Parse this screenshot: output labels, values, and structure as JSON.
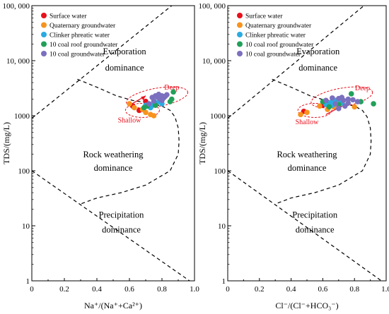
{
  "chart_data": [
    {
      "type": "scatter",
      "panel": "left",
      "title": "",
      "xlabel": "Na⁺/(Na⁺+Ca²⁺)",
      "ylabel": "TDS/(mg/L)",
      "xlim": [
        0,
        1
      ],
      "ylim": [
        1,
        100000
      ],
      "y_scale": "log",
      "x_ticks": [
        "0",
        "0.2",
        "0.4",
        "0.6",
        "0.8",
        "1.0"
      ],
      "y_ticks": [
        "1",
        "10",
        "100",
        "1000",
        "10, 000",
        "100, 000"
      ],
      "regions": [
        "Evaporation dominance",
        "Rock weathering dominance",
        "Precipitation dominance"
      ],
      "annotations": [
        "Deep",
        "Shallow"
      ],
      "legend_position": "top-left",
      "series": [
        {
          "name": "Surface water",
          "color": "#e8101c",
          "points": [
            [
              0.66,
              1250
            ],
            [
              0.62,
              1500
            ],
            [
              0.7,
              1820
            ]
          ]
        },
        {
          "name": "Quaternary groundwater",
          "color": "#f7931e",
          "points": [
            [
              0.6,
              1650
            ],
            [
              0.63,
              1400
            ],
            [
              0.7,
              1150
            ],
            [
              0.73,
              1050
            ],
            [
              0.75,
              1000
            ],
            [
              0.68,
              1300
            ]
          ]
        },
        {
          "name": "Clinker phreatic water",
          "color": "#29abe2",
          "points": [
            [
              0.7,
              1550
            ],
            [
              0.73,
              1400
            ],
            [
              0.74,
              1600
            ],
            [
              0.76,
              1700
            ],
            [
              0.78,
              1800
            ],
            [
              0.8,
              1650
            ]
          ]
        },
        {
          "name": "10 coal roof groundwater",
          "color": "#22a05a",
          "points": [
            [
              0.69,
              1400
            ],
            [
              0.71,
              1500
            ],
            [
              0.76,
              1550
            ],
            [
              0.85,
              1800
            ],
            [
              0.86,
              2000
            ],
            [
              0.87,
              2700
            ]
          ]
        },
        {
          "name": "10 coal  groundwater",
          "color": "#7b6fbf",
          "points": [
            [
              0.72,
              1650
            ],
            [
              0.74,
              2150
            ],
            [
              0.76,
              2300
            ],
            [
              0.77,
              2200
            ],
            [
              0.79,
              2000
            ],
            [
              0.8,
              1900
            ],
            [
              0.82,
              2250
            ],
            [
              0.83,
              2400
            ],
            [
              0.8,
              2300
            ],
            [
              0.78,
              2450
            ],
            [
              0.75,
              1850
            ],
            [
              0.81,
              2100
            ]
          ]
        }
      ]
    },
    {
      "type": "scatter",
      "panel": "right",
      "title": "",
      "xlabel": "Cl⁻/(Cl⁻+HCO₃⁻)",
      "ylabel": "TDS/(mg/L)",
      "xlim": [
        0,
        1
      ],
      "ylim": [
        1,
        100000
      ],
      "y_scale": "log",
      "x_ticks": [
        "0",
        "0.2",
        "0.4",
        "0.6",
        "0.8",
        "1.0"
      ],
      "y_ticks": [
        "1",
        "10",
        "100",
        "1000",
        "10, 000",
        "100, 000"
      ],
      "regions": [
        "Evaporation dominance",
        "Rock weathering dominance",
        "Precipitation dominance"
      ],
      "annotations": [
        "Deep",
        "Shallow"
      ],
      "legend_position": "top-left",
      "series": [
        {
          "name": "Surface water",
          "color": "#e8101c",
          "points": [
            [
              0.48,
              1200
            ],
            [
              0.6,
              1550
            ],
            [
              0.63,
              1750
            ]
          ]
        },
        {
          "name": "Quaternary groundwater",
          "color": "#f7931e",
          "points": [
            [
              0.46,
              1050
            ],
            [
              0.5,
              1150
            ],
            [
              0.58,
              1500
            ],
            [
              0.63,
              1300
            ],
            [
              0.67,
              1450
            ],
            [
              0.8,
              1450
            ]
          ]
        },
        {
          "name": "Clinker phreatic water",
          "color": "#29abe2",
          "points": [
            [
              0.62,
              1600
            ],
            [
              0.65,
              1750
            ],
            [
              0.68,
              1900
            ],
            [
              0.7,
              2000
            ],
            [
              0.66,
              1550
            ],
            [
              0.72,
              1700
            ]
          ]
        },
        {
          "name": "10 coal roof groundwater",
          "color": "#22a05a",
          "points": [
            [
              0.6,
              1800
            ],
            [
              0.64,
              1450
            ],
            [
              0.7,
              1600
            ],
            [
              0.78,
              2500
            ],
            [
              0.84,
              1800
            ],
            [
              0.92,
              1650
            ]
          ]
        },
        {
          "name": "10 coal  groundwater",
          "color": "#7b6fbf",
          "points": [
            [
              0.62,
              1900
            ],
            [
              0.66,
              2100
            ],
            [
              0.7,
              2050
            ],
            [
              0.73,
              1900
            ],
            [
              0.76,
              1700
            ],
            [
              0.79,
              1950
            ],
            [
              0.82,
              1800
            ],
            [
              0.7,
              1350
            ],
            [
              0.74,
              1500
            ],
            [
              0.76,
              2000
            ],
            [
              0.68,
              1650
            ],
            [
              0.72,
              2150
            ]
          ]
        }
      ]
    }
  ]
}
